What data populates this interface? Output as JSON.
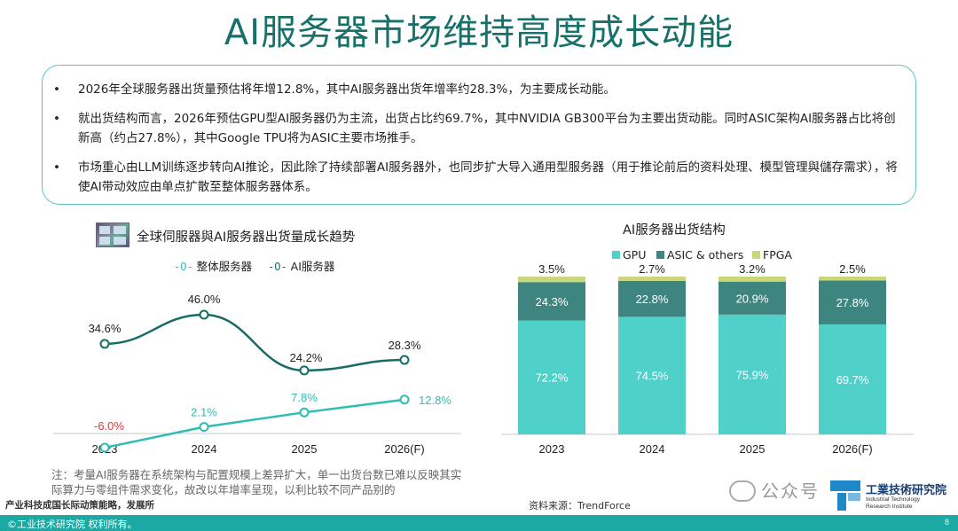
{
  "title": "AI服务器市场维持高度成长动能",
  "bullets": [
    "2026年全球服务器出货量预估将年增12.8%，其中AI服务器出货年增率约28.3%，为主要成长动能。",
    "就出货结构而言，2026年预估GPU型AI服务器仍为主流，出货占比约69.7%，其中NVIDIA  GB300平台为主要出货动能。同时ASIC架构AI服务器占比将创新高（约占27.8%），其中Google TPU将为ASIC主要市场推手。",
    "市场重心由LLM训练逐步转向AI推论，因此除了持续部署AI服务器外，也同步扩大导入通用型服务器（用于推论前后的资料处理、模型管理與儲存需求），将使AI带动效应由单点扩散至整体服务器体系。"
  ],
  "bullet_marker": "•",
  "line_chart_title": "全球伺服器與AI服务器出货量成长趋势",
  "legend_marker": "-O-",
  "bar_chart_title": "AI服务器出货结构",
  "chart_data": [
    {
      "type": "line",
      "title": "全球伺服器與AI服务器出货量成长趋势",
      "categories": [
        "2023",
        "2024",
        "2025",
        "2026(F)"
      ],
      "series": [
        {
          "name": "整体服务器",
          "values": [
            -6.0,
            2.1,
            7.8,
            12.8
          ],
          "labels": [
            "-6.0%",
            "2.1%",
            "7.8%",
            "12.8%"
          ],
          "color": "#2ebdb4"
        },
        {
          "name": "AI服务器",
          "values": [
            34.6,
            46.0,
            24.2,
            28.3
          ],
          "labels": [
            "34.6%",
            "46.0%",
            "24.2%",
            "28.3%"
          ],
          "color": "#176c66"
        }
      ],
      "negative_label_color": "#d23c3c",
      "ylim": [
        -8,
        52
      ],
      "grid": false,
      "legend_position": "top"
    },
    {
      "type": "bar",
      "stacked": true,
      "title": "AI服务器出货结构",
      "categories": [
        "2023",
        "2024",
        "2025",
        "2026(F)"
      ],
      "series": [
        {
          "name": "GPU",
          "values": [
            72.2,
            74.5,
            75.9,
            69.7
          ],
          "labels": [
            "72.2%",
            "74.5%",
            "75.9%",
            "69.7%"
          ],
          "color": "#4fd0c8"
        },
        {
          "name": "ASIC & others",
          "values": [
            24.3,
            22.8,
            20.9,
            27.8
          ],
          "labels": [
            "24.3%",
            "22.8%",
            "20.9%",
            "27.8%"
          ],
          "color": "#3f857f"
        },
        {
          "name": "FPGA",
          "values": [
            3.5,
            2.7,
            3.2,
            2.5
          ],
          "labels": [
            "3.5%",
            "2.7%",
            "3.2%",
            "2.5%"
          ],
          "color": "#c9d67a"
        }
      ],
      "ylim": [
        0,
        100
      ],
      "grid": false,
      "legend_position": "top-left"
    }
  ],
  "note": "注：考量AI服务器在系统架构与配置规模上差异扩大，单一出货台数已难以反映其实际算力与零组件需求变化，故改以年增率呈现，以利比较不同产品别的",
  "source_left": "产业科技成国长际动策能略，发展所",
  "source_right": "资料来源：TrendForce",
  "watermark": "公众号",
  "logo": {
    "name_cn": "工業技術研究院",
    "name_en_1": "Industrial Technology",
    "name_en_2": "Research Institute"
  },
  "footer": "©工业技术研究院  权利所有。",
  "page_number": "8"
}
